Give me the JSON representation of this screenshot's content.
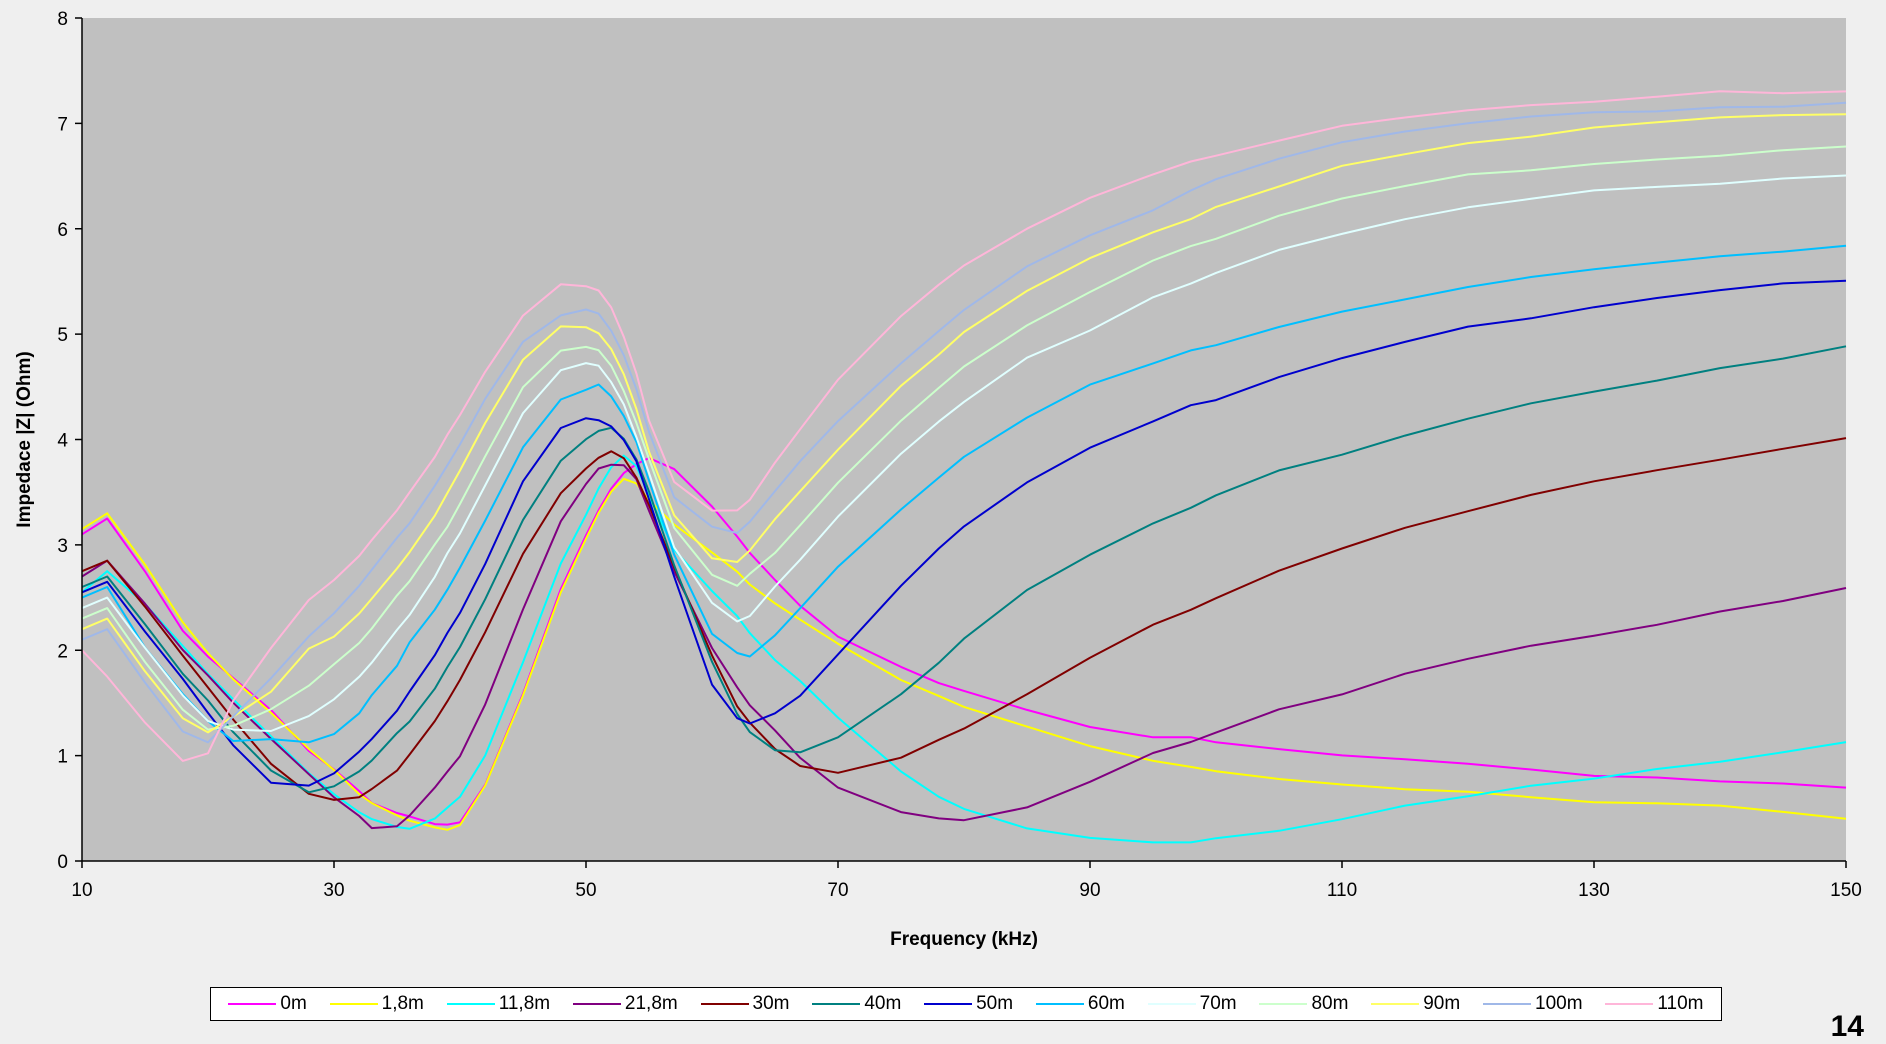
{
  "chart_data": {
    "type": "line",
    "title": "",
    "xlabel": "Frequency (kHz)",
    "ylabel": "Impedace |Z| (Ohm)",
    "xlim": [
      10,
      150
    ],
    "ylim": [
      0,
      8
    ],
    "xticks": [
      10,
      30,
      50,
      70,
      90,
      110,
      130,
      150
    ],
    "yticks": [
      0,
      1,
      2,
      3,
      4,
      5,
      6,
      7,
      8
    ],
    "grid": false,
    "legend_position": "bottom",
    "x": [
      10,
      12,
      15,
      18,
      20,
      22,
      25,
      28,
      30,
      32,
      33,
      35,
      36,
      38,
      39,
      40,
      42,
      45,
      48,
      50,
      51,
      52,
      53,
      54,
      55,
      57,
      60,
      62,
      63,
      65,
      67,
      70,
      75,
      78,
      80,
      85,
      90,
      95,
      98,
      100,
      105,
      110,
      115,
      120,
      125,
      130,
      135,
      140,
      145,
      150
    ],
    "series": [
      {
        "name": "0m",
        "color": "#ff00ff",
        "values": [
          3.1,
          3.25,
          2.75,
          2.2,
          1.95,
          1.75,
          1.45,
          1.05,
          0.85,
          0.65,
          0.55,
          0.45,
          0.4,
          0.35,
          0.34,
          0.38,
          0.75,
          1.6,
          2.6,
          3.1,
          3.35,
          3.55,
          3.7,
          3.75,
          3.8,
          3.7,
          3.35,
          3.05,
          2.9,
          2.65,
          2.45,
          2.15,
          1.85,
          1.7,
          1.62,
          1.45,
          1.3,
          1.2,
          1.16,
          1.12,
          1.05,
          1.0,
          0.95,
          0.9,
          0.86,
          0.83,
          0.8,
          0.77,
          0.74,
          0.7
        ]
      },
      {
        "name": "1,8m",
        "color": "#ffff00",
        "values": [
          3.15,
          3.3,
          2.8,
          2.25,
          1.95,
          1.72,
          1.4,
          1.05,
          0.85,
          0.65,
          0.55,
          0.45,
          0.4,
          0.33,
          0.32,
          0.35,
          0.7,
          1.55,
          2.55,
          3.05,
          3.3,
          3.5,
          3.6,
          3.6,
          3.45,
          3.2,
          2.95,
          2.75,
          2.65,
          2.45,
          2.3,
          2.05,
          1.7,
          1.55,
          1.45,
          1.25,
          1.08,
          0.95,
          0.9,
          0.86,
          0.8,
          0.75,
          0.7,
          0.66,
          0.62,
          0.58,
          0.54,
          0.5,
          0.45,
          0.4
        ]
      },
      {
        "name": "11,8m",
        "color": "#00ffff",
        "values": [
          2.55,
          2.75,
          2.45,
          2.05,
          1.8,
          1.55,
          1.2,
          0.85,
          0.65,
          0.45,
          0.38,
          0.32,
          0.3,
          0.38,
          0.5,
          0.6,
          1.0,
          1.9,
          2.85,
          3.3,
          3.55,
          3.75,
          3.85,
          3.75,
          3.45,
          2.95,
          2.55,
          2.3,
          2.15,
          1.9,
          1.68,
          1.35,
          0.85,
          0.62,
          0.5,
          0.33,
          0.24,
          0.2,
          0.19,
          0.2,
          0.27,
          0.38,
          0.5,
          0.6,
          0.7,
          0.78,
          0.88,
          0.97,
          1.05,
          1.15
        ]
      },
      {
        "name": "21,8m",
        "color": "#800080",
        "values": [
          2.7,
          2.85,
          2.45,
          2.0,
          1.75,
          1.5,
          1.15,
          0.8,
          0.6,
          0.4,
          0.32,
          0.35,
          0.45,
          0.7,
          0.85,
          1.0,
          1.5,
          2.4,
          3.2,
          3.55,
          3.7,
          3.75,
          3.75,
          3.6,
          3.3,
          2.75,
          2.05,
          1.65,
          1.5,
          1.25,
          1.0,
          0.72,
          0.45,
          0.38,
          0.37,
          0.5,
          0.75,
          1.0,
          1.12,
          1.2,
          1.45,
          1.6,
          1.78,
          1.92,
          2.05,
          2.15,
          2.25,
          2.35,
          2.45,
          2.58
        ]
      },
      {
        "name": "30m",
        "color": "#800000",
        "values": [
          2.75,
          2.85,
          2.4,
          1.95,
          1.65,
          1.35,
          0.95,
          0.65,
          0.58,
          0.62,
          0.7,
          0.85,
          1.0,
          1.3,
          1.5,
          1.7,
          2.15,
          2.9,
          3.5,
          3.75,
          3.85,
          3.9,
          3.85,
          3.65,
          3.4,
          2.8,
          1.95,
          1.45,
          1.3,
          1.05,
          0.88,
          0.82,
          0.98,
          1.15,
          1.28,
          1.6,
          1.95,
          2.25,
          2.4,
          2.5,
          2.75,
          2.95,
          3.15,
          3.3,
          3.45,
          3.6,
          3.7,
          3.8,
          3.92,
          4.02
        ]
      },
      {
        "name": "40m",
        "color": "#008080",
        "values": [
          2.6,
          2.7,
          2.25,
          1.8,
          1.5,
          1.2,
          0.85,
          0.65,
          0.7,
          0.85,
          0.95,
          1.2,
          1.35,
          1.65,
          1.85,
          2.05,
          2.5,
          3.25,
          3.8,
          4.0,
          4.08,
          4.1,
          4.0,
          3.8,
          3.5,
          2.8,
          1.9,
          1.4,
          1.25,
          1.08,
          1.05,
          1.2,
          1.6,
          1.9,
          2.1,
          2.55,
          2.9,
          3.2,
          3.35,
          3.45,
          3.68,
          3.88,
          4.05,
          4.2,
          4.35,
          4.48,
          4.58,
          4.68,
          4.78,
          4.88
        ]
      },
      {
        "name": "50m",
        "color": "#0000cd",
        "values": [
          2.55,
          2.65,
          2.15,
          1.7,
          1.4,
          1.1,
          0.75,
          0.72,
          0.85,
          1.05,
          1.18,
          1.45,
          1.6,
          1.95,
          2.15,
          2.35,
          2.8,
          3.6,
          4.1,
          4.2,
          4.2,
          4.15,
          4.0,
          3.8,
          3.45,
          2.7,
          1.7,
          1.35,
          1.3,
          1.38,
          1.55,
          1.95,
          2.6,
          2.95,
          3.15,
          3.6,
          3.95,
          4.2,
          4.33,
          4.4,
          4.6,
          4.78,
          4.92,
          5.05,
          5.15,
          5.25,
          5.32,
          5.4,
          5.48,
          5.52
        ]
      },
      {
        "name": "60m",
        "color": "#00bfff",
        "values": [
          2.5,
          2.6,
          2.05,
          1.6,
          1.35,
          1.15,
          1.15,
          1.1,
          1.2,
          1.4,
          1.55,
          1.85,
          2.05,
          2.4,
          2.6,
          2.8,
          3.25,
          3.95,
          4.4,
          4.5,
          4.5,
          4.4,
          4.2,
          3.95,
          3.6,
          2.9,
          2.15,
          1.95,
          1.95,
          2.15,
          2.4,
          2.8,
          3.35,
          3.65,
          3.85,
          4.2,
          4.5,
          4.72,
          4.82,
          4.88,
          5.05,
          5.2,
          5.32,
          5.45,
          5.55,
          5.62,
          5.68,
          5.74,
          5.8,
          5.85
        ]
      },
      {
        "name": "70m",
        "color": "#e0ffff",
        "values": [
          2.4,
          2.5,
          2.0,
          1.55,
          1.3,
          1.22,
          1.25,
          1.4,
          1.55,
          1.75,
          1.9,
          2.2,
          2.35,
          2.7,
          2.9,
          3.1,
          3.55,
          4.25,
          4.65,
          4.72,
          4.7,
          4.55,
          4.35,
          4.05,
          3.7,
          3.0,
          2.45,
          2.3,
          2.35,
          2.6,
          2.85,
          3.25,
          3.85,
          4.15,
          4.35,
          4.75,
          5.05,
          5.35,
          5.5,
          5.6,
          5.8,
          5.98,
          6.1,
          6.2,
          6.28,
          6.34,
          6.38,
          6.42,
          6.46,
          6.5
        ]
      },
      {
        "name": "80m",
        "color": "#ccffcc",
        "values": [
          2.3,
          2.4,
          1.9,
          1.45,
          1.25,
          1.3,
          1.45,
          1.65,
          1.85,
          2.05,
          2.2,
          2.5,
          2.65,
          3.0,
          3.2,
          3.4,
          3.85,
          4.5,
          4.85,
          4.9,
          4.85,
          4.7,
          4.45,
          4.15,
          3.8,
          3.15,
          2.7,
          2.6,
          2.7,
          2.95,
          3.2,
          3.6,
          4.2,
          4.5,
          4.72,
          5.1,
          5.42,
          5.68,
          5.82,
          5.9,
          6.1,
          6.28,
          6.4,
          6.5,
          6.58,
          6.64,
          6.68,
          6.72,
          6.76,
          6.8
        ]
      },
      {
        "name": "90m",
        "color": "#ffff66",
        "values": [
          2.2,
          2.3,
          1.8,
          1.35,
          1.2,
          1.35,
          1.6,
          2.0,
          2.15,
          2.35,
          2.5,
          2.8,
          2.95,
          3.3,
          3.5,
          3.7,
          4.15,
          4.75,
          5.05,
          5.05,
          5.0,
          4.85,
          4.6,
          4.3,
          3.9,
          3.3,
          2.9,
          2.85,
          2.95,
          3.25,
          3.5,
          3.9,
          4.5,
          4.8,
          5.0,
          5.4,
          5.72,
          5.98,
          6.12,
          6.22,
          6.42,
          6.6,
          6.72,
          6.82,
          6.9,
          6.96,
          7.0,
          7.03,
          7.06,
          7.08
        ]
      },
      {
        "name": "100m",
        "color": "#a0b8e8",
        "values": [
          2.1,
          2.2,
          1.7,
          1.25,
          1.15,
          1.4,
          1.75,
          2.15,
          2.35,
          2.6,
          2.75,
          3.05,
          3.2,
          3.55,
          3.75,
          3.95,
          4.4,
          4.95,
          5.2,
          5.25,
          5.2,
          5.05,
          4.8,
          4.45,
          4.05,
          3.45,
          3.15,
          3.1,
          3.2,
          3.5,
          3.78,
          4.2,
          4.75,
          5.05,
          5.25,
          5.65,
          5.95,
          6.2,
          6.35,
          6.45,
          6.65,
          6.82,
          6.92,
          7.0,
          7.06,
          7.1,
          7.14,
          7.16,
          7.18,
          7.2
        ]
      },
      {
        "name": "110m",
        "color": "#ffb6d9",
        "values": [
          2.0,
          1.75,
          1.3,
          0.95,
          1.0,
          1.5,
          2.0,
          2.45,
          2.65,
          2.9,
          3.05,
          3.35,
          3.5,
          3.85,
          4.05,
          4.25,
          4.65,
          5.15,
          5.45,
          5.45,
          5.4,
          5.25,
          4.95,
          4.6,
          4.2,
          3.6,
          3.35,
          3.35,
          3.45,
          3.8,
          4.1,
          4.55,
          5.15,
          5.45,
          5.65,
          6.0,
          6.28,
          6.5,
          6.62,
          6.7,
          6.85,
          7.0,
          7.08,
          7.14,
          7.18,
          7.22,
          7.24,
          7.3,
          7.28,
          7.3
        ]
      }
    ]
  },
  "page_number": "14"
}
